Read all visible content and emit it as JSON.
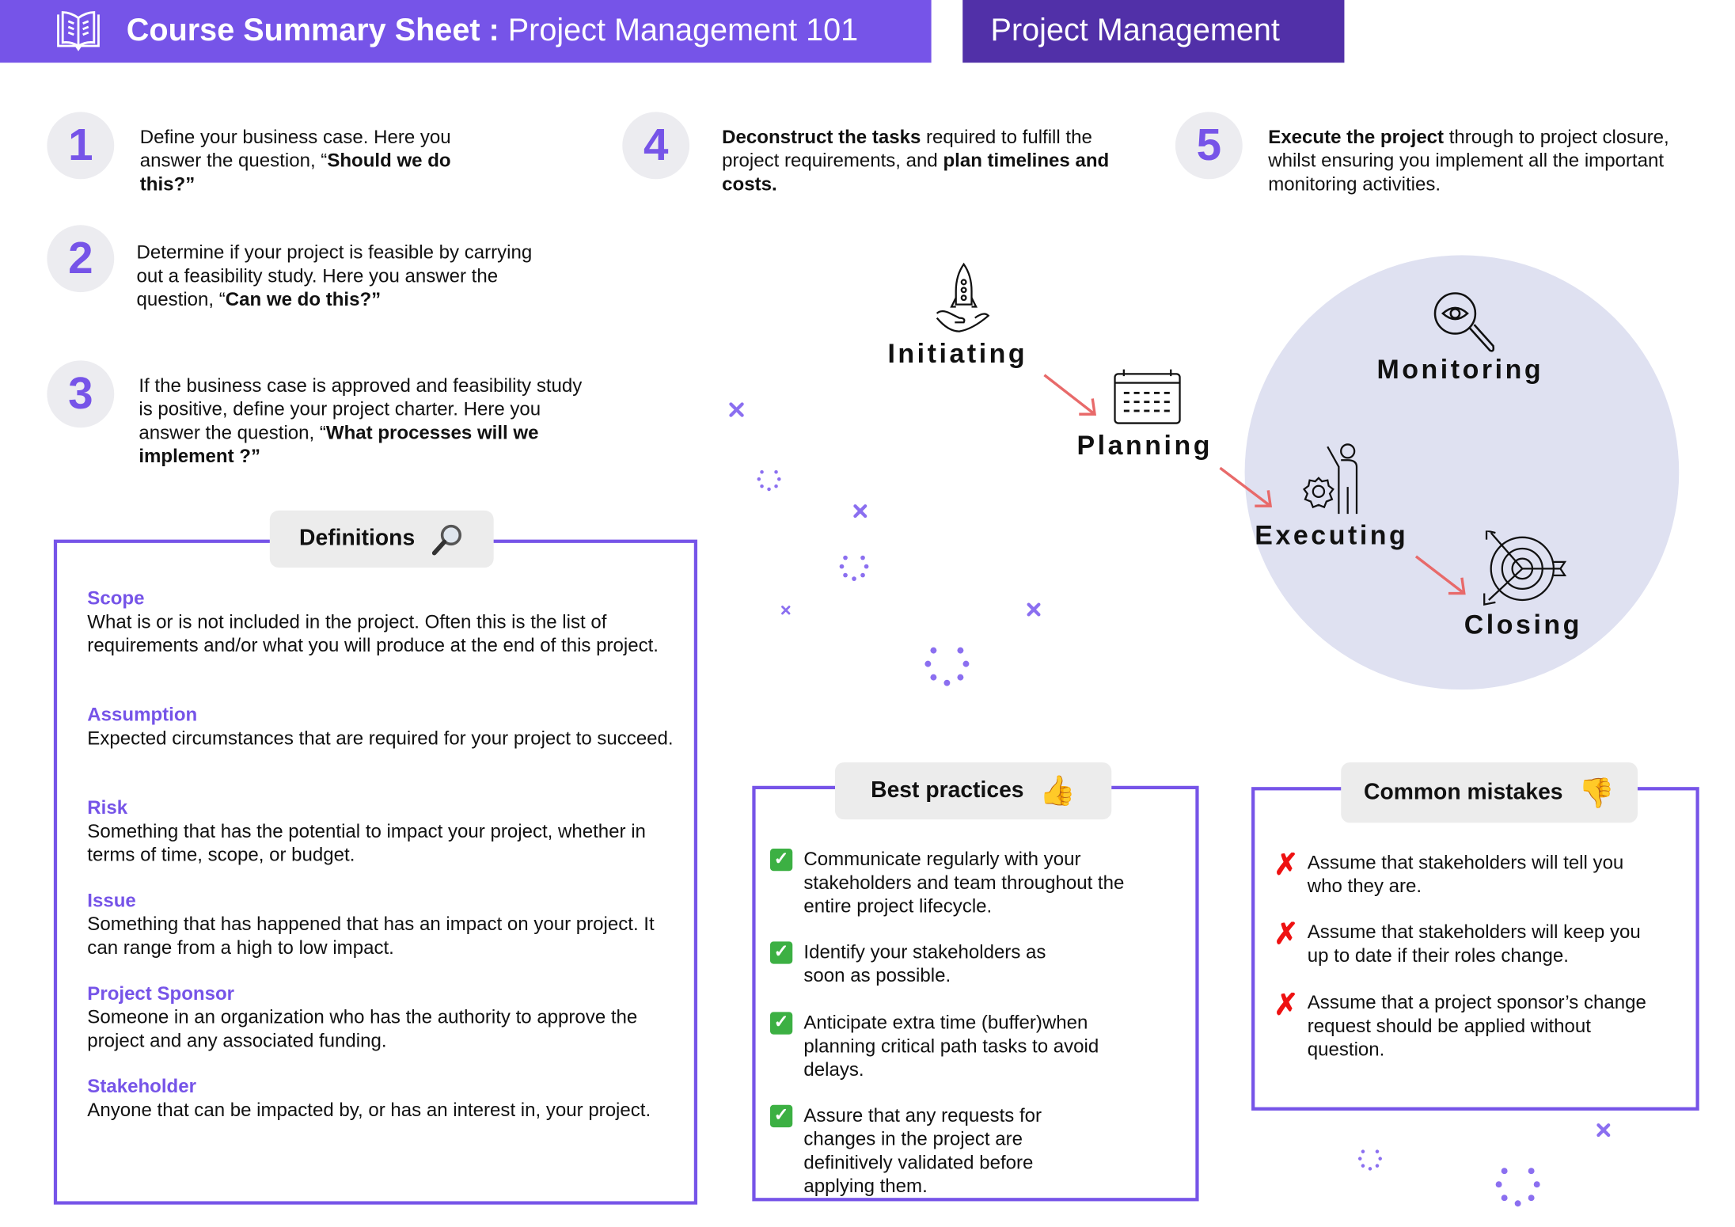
{
  "header": {
    "title_bold": "Course Summary Sheet :",
    "title_rest": "Project Management 101",
    "badge": "Project Management",
    "book_icon": "open-book-icon",
    "colors": {
      "primary": "#7654e8",
      "dark": "#5130a8",
      "circle": "#dfe1f1",
      "arrow": "#e86a6a"
    }
  },
  "steps": [
    {
      "number": "1",
      "text": "Define your business case. Here you answer the question, “",
      "bold": "Should we do this?”",
      "tail": ""
    },
    {
      "number": "2",
      "text": "Determine if your project is feasible by carrying out a feasibility study. Here you answer the question, “",
      "bold": "Can we do this?”",
      "tail": ""
    },
    {
      "number": "3",
      "text": "If the business case is approved and feasibility study is positive, define your project charter. Here you answer the question, “",
      "bold": "What processes will we implement ?”",
      "tail": ""
    },
    {
      "number": "4",
      "bold": "Deconstruct the tasks",
      "text": " required to fulfill the project requirements, and ",
      "bold2": "plan timelines and costs."
    },
    {
      "number": "5",
      "bold": "Execute the project",
      "text": " through to project closure, whilst ensuring you implement all the important monitoring activities."
    }
  ],
  "phases": {
    "initiating": "Initiating",
    "planning": "Planning",
    "executing": "Executing",
    "monitoring": "Monitoring",
    "closing": "Closing"
  },
  "definitions": {
    "title": "Definitions",
    "icon": "magnifier-icon",
    "items": [
      {
        "term": "Scope",
        "desc": "What is or is not included in the project. Often this is the list of requirements and/or what you will produce at the end of this project."
      },
      {
        "term": "Assumption",
        "desc": "Expected circumstances that are required for your project to succeed."
      },
      {
        "term": "Risk",
        "desc": "Something that has the potential to impact your project, whether in terms of time, scope, or budget."
      },
      {
        "term": "Issue",
        "desc": "Something that has happened that has an impact on your project. It can range from a high to low impact."
      },
      {
        "term": "Project Sponsor",
        "desc": "Someone in an organization who has the authority to approve the project and any  associated funding."
      },
      {
        "term": "Stakeholder",
        "desc": "Anyone that can be impacted by, or has an interest in, your project."
      }
    ]
  },
  "best_practices": {
    "title": "Best practices",
    "icon": "thumbs-up-icon",
    "items": [
      "Communicate regularly with your stakeholders and team throughout the entire project lifecycle.",
      "Identify your stakeholders as soon as possible.",
      "Anticipate extra time (buffer)when planning critical path tasks to avoid delays.",
      "Assure that any requests for changes in the project are definitively validated before applying them."
    ]
  },
  "common_mistakes": {
    "title": "Common mistakes",
    "icon": "thumbs-down-icon",
    "items": [
      "Assume that stakeholders will tell you who they are.",
      "Assume that stakeholders will keep you up to date if their roles change.",
      "Assume that a project sponsor’s change request should be applied without question."
    ]
  }
}
